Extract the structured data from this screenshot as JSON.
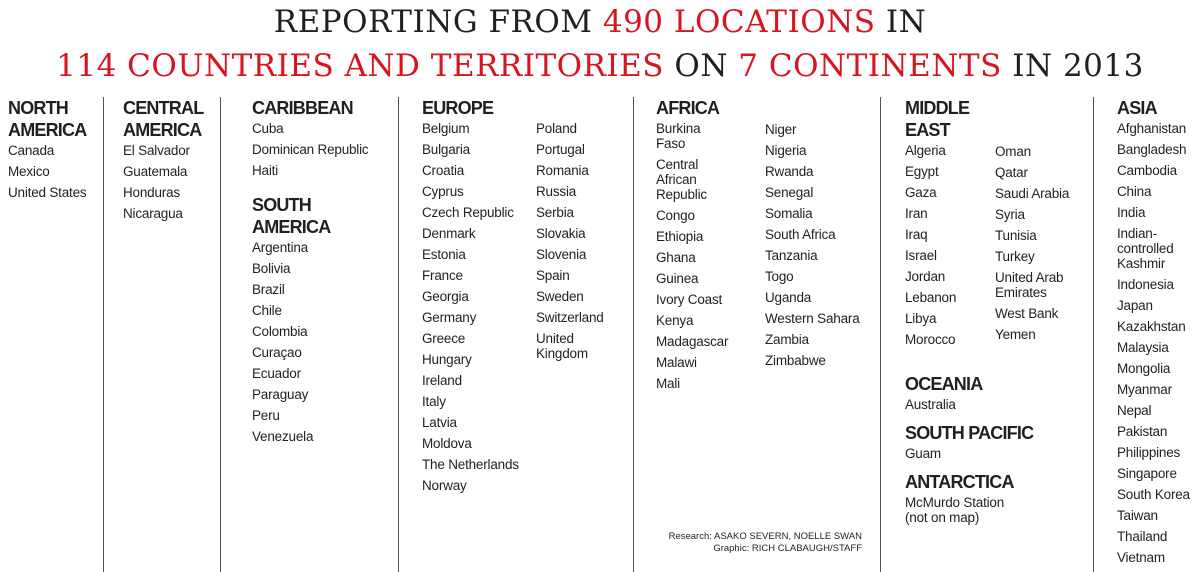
{
  "title": {
    "line1": [
      {
        "t": "REPORTING FROM ",
        "red": false
      },
      {
        "t": "490 LOCATIONS",
        "red": true
      },
      {
        "t": " IN",
        "red": false
      }
    ],
    "line2": [
      {
        "t": "114 COUNTRIES AND TERRITORIES",
        "red": true
      },
      {
        "t": " ON ",
        "red": false
      },
      {
        "t": "7 CONTINENTS",
        "red": true
      },
      {
        "t": " IN 2013",
        "red": false
      }
    ]
  },
  "colors": {
    "accent": "#d7141f",
    "text": "#231f20"
  },
  "regions": {
    "north_america": {
      "heading": "NORTH\nAMERICA",
      "items": [
        "Canada",
        "Mexico",
        "United States"
      ]
    },
    "central_america": {
      "heading": "CENTRAL\nAMERICA",
      "items": [
        "El Salvador",
        "Guatemala",
        "Honduras",
        "Nicaragua"
      ]
    },
    "caribbean": {
      "heading": "CARIBBEAN",
      "items": [
        "Cuba",
        "Dominican Republic",
        "Haiti"
      ]
    },
    "south_america": {
      "heading": "SOUTH\nAMERICA",
      "items": [
        "Argentina",
        "Bolivia",
        "Brazil",
        "Chile",
        "Colombia",
        "Curaçao",
        "Ecuador",
        "Paraguay",
        "Peru",
        "Venezuela"
      ]
    },
    "europe": {
      "heading": "EUROPE",
      "items_a": [
        "Belgium",
        "Bulgaria",
        "Croatia",
        "Cyprus",
        "Czech Republic",
        "Denmark",
        "Estonia",
        "France",
        "Georgia",
        "Germany",
        "Greece",
        "Hungary",
        "Ireland",
        "Italy",
        "Latvia",
        "Moldova",
        "The Netherlands",
        "Norway"
      ],
      "items_b": [
        "Poland",
        "Portugal",
        "Romania",
        "Russia",
        "Serbia",
        "Slovakia",
        "Slovenia",
        "Spain",
        "Sweden",
        "Switzerland",
        "United\nKingdom"
      ]
    },
    "africa": {
      "heading": "AFRICA",
      "items_a": [
        "Burkina\nFaso",
        "Central\nAfrican\nRepublic",
        "Congo",
        "Ethiopia",
        "Ghana",
        "Guinea",
        "Ivory Coast",
        "Kenya",
        "Madagascar",
        "Malawi",
        "Mali"
      ],
      "items_b": [
        "Niger",
        "Nigeria",
        "Rwanda",
        "Senegal",
        "Somalia",
        "South Africa",
        "Tanzania",
        "Togo",
        "Uganda",
        "Western Sahara",
        "Zambia",
        "Zimbabwe"
      ]
    },
    "middle_east": {
      "heading": "MIDDLE\nEAST",
      "items_a": [
        "Algeria",
        "Egypt",
        "Gaza",
        "Iran",
        "Iraq",
        "Israel",
        "Jordan",
        "Lebanon",
        "Libya",
        "Morocco"
      ],
      "items_b": [
        "Oman",
        "Qatar",
        "Saudi Arabia",
        "Syria",
        "Tunisia",
        "Turkey",
        "United Arab\nEmirates",
        "West Bank",
        "Yemen"
      ]
    },
    "oceania": {
      "heading": "OCEANIA",
      "items": [
        "Australia"
      ]
    },
    "south_pacific": {
      "heading": "SOUTH PACIFIC",
      "items": [
        "Guam"
      ]
    },
    "antarctica": {
      "heading": "ANTARCTICA",
      "items": [
        "McMurdo Station\n(not on map)"
      ]
    },
    "asia": {
      "heading": "ASIA",
      "items": [
        "Afghanistan",
        "Bangladesh",
        "Cambodia",
        "China",
        "India",
        "Indian-\ncontrolled\nKashmir",
        "Indonesia",
        "Japan",
        "Kazakhstan",
        "Malaysia",
        "Mongolia",
        "Myanmar",
        "Nepal",
        "Pakistan",
        "Philippines",
        "Singapore",
        "South Korea",
        "Taiwan",
        "Thailand",
        "Vietnam"
      ]
    }
  },
  "credits": {
    "research": "Research: ASAKO SEVERN, NOELLE SWAN",
    "graphic": "Graphic: RICH CLABAUGH/STAFF"
  }
}
